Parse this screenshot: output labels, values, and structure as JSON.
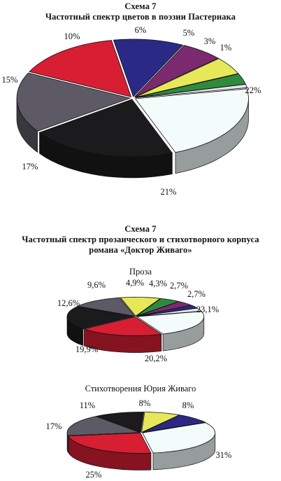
{
  "figure1": {
    "scheme_label": "Схема 7",
    "title": "Частотный спектр цветов в поэзии Пастернака"
  },
  "figure2": {
    "scheme_label": "Схема 7",
    "title_line1": "Частотный спектр прозаического и стихотворного корпуса",
    "title_line2": "романа «Доктор Живаго»"
  },
  "chart_data": [
    {
      "type": "pie",
      "style": "3d-exploded",
      "title": "Частотный спектр цветов в поэзии Пастернака",
      "slices": [
        {
          "label": "22%",
          "value": 22,
          "color": "#f3fbfb"
        },
        {
          "label": "21%",
          "value": 21,
          "color": "#1b1b1d"
        },
        {
          "label": "17%",
          "value": 17,
          "color": "#5d5a66"
        },
        {
          "label": "15%",
          "value": 15,
          "color": "#d81e33"
        },
        {
          "label": "10%",
          "value": 10,
          "color": "#2a2a86"
        },
        {
          "label": "6%",
          "value": 6,
          "color": "#7c2a6f"
        },
        {
          "label": "5%",
          "value": 5,
          "color": "#e6e85a"
        },
        {
          "label": "3%",
          "value": 3,
          "color": "#2f8a3e"
        },
        {
          "label": "1%",
          "value": 1,
          "color": "#e4e4ec"
        }
      ]
    },
    {
      "type": "pie",
      "style": "3d-exploded",
      "title": "Проза",
      "slices": [
        {
          "label": "23,1%",
          "value": 23.1,
          "color": "#f3fbfb"
        },
        {
          "label": "20,2%",
          "value": 20.2,
          "color": "#d81e33"
        },
        {
          "label": "19,9%",
          "value": 19.9,
          "color": "#1b1b1d"
        },
        {
          "label": "12,6%",
          "value": 12.6,
          "color": "#5d5a66"
        },
        {
          "label": "9,6%",
          "value": 9.6,
          "color": "#e6e85a"
        },
        {
          "label": "4,9%",
          "value": 4.9,
          "color": "#2f8a3e"
        },
        {
          "label": "4,3%",
          "value": 4.3,
          "color": "#7c2a6f"
        },
        {
          "label": "2,7%",
          "value": 2.7,
          "color": "#2a2a86"
        },
        {
          "label": "2,7%",
          "value": 2.7,
          "color": "#e4e4ec"
        }
      ]
    },
    {
      "type": "pie",
      "style": "3d-exploded",
      "title": "Стихотворения Юрия Живаго",
      "slices": [
        {
          "label": "31%",
          "value": 31,
          "color": "#f3fbfb"
        },
        {
          "label": "25%",
          "value": 25,
          "color": "#d81e33"
        },
        {
          "label": "17%",
          "value": 17,
          "color": "#5d5a66"
        },
        {
          "label": "11%",
          "value": 11,
          "color": "#1b1b1d"
        },
        {
          "label": "8%",
          "value": 8,
          "color": "#e6e85a"
        },
        {
          "label": "8%",
          "value": 8,
          "color": "#2a2a86"
        }
      ]
    }
  ]
}
